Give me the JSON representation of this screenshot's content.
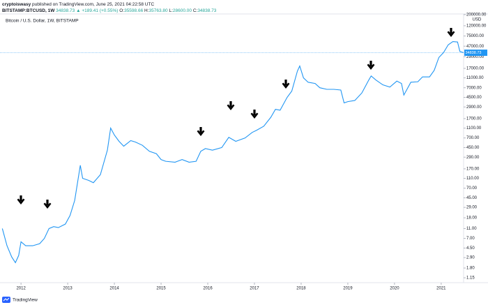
{
  "header": {
    "author": "cryptoiswasy",
    "published": "published on TradingView.com, June 25, 2021 04:22:58 UTC",
    "symbol": "BITSTAMP:BTCUSD, 1W",
    "price": "34838.73",
    "change": "▲ +189.41 (+0.55%)",
    "open_label": "O:",
    "open": "35598.66",
    "high_label": "H:",
    "high": "35763.80",
    "low_label": "L:",
    "low": "28600.00",
    "close_label": "C:",
    "close": "34838.73"
  },
  "chart_data": {
    "type": "line",
    "title": "Bitcoin / U.S. Dollar, 1W, BITSTAMP",
    "y_axis_unit": "USD",
    "color": "#2196f3",
    "log_scale": true,
    "grid": false,
    "x": [
      2011.6,
      2011.7,
      2011.8,
      2011.88,
      2011.95,
      2012.0,
      2012.1,
      2012.25,
      2012.4,
      2012.5,
      2012.6,
      2012.7,
      2012.8,
      2012.95,
      2013.05,
      2013.15,
      2013.27,
      2013.32,
      2013.45,
      2013.55,
      2013.7,
      2013.85,
      2013.92,
      2014.0,
      2014.1,
      2014.2,
      2014.35,
      2014.45,
      2014.6,
      2014.75,
      2014.9,
      2015.0,
      2015.1,
      2015.3,
      2015.45,
      2015.6,
      2015.75,
      2015.85,
      2015.95,
      2016.1,
      2016.3,
      2016.45,
      2016.6,
      2016.8,
      2016.95,
      2017.05,
      2017.2,
      2017.35,
      2017.45,
      2017.55,
      2017.7,
      2017.8,
      2017.92,
      2017.97,
      2018.05,
      2018.15,
      2018.3,
      2018.4,
      2018.55,
      2018.7,
      2018.85,
      2018.92,
      2019.0,
      2019.15,
      2019.3,
      2019.45,
      2019.5,
      2019.6,
      2019.75,
      2019.9,
      2020.05,
      2020.15,
      2020.2,
      2020.35,
      2020.5,
      2020.6,
      2020.75,
      2020.85,
      2020.95,
      2021.05,
      2021.15,
      2021.25,
      2021.35,
      2021.4,
      2021.48
    ],
    "values": [
      11,
      5,
      3,
      2.3,
      3.2,
      6,
      5,
      5,
      5.5,
      7,
      11,
      12,
      11.5,
      13.5,
      20,
      40,
      200,
      110,
      100,
      90,
      130,
      400,
      1100,
      800,
      600,
      480,
      620,
      580,
      500,
      380,
      340,
      260,
      240,
      230,
      260,
      230,
      240,
      380,
      430,
      400,
      450,
      720,
      600,
      700,
      900,
      1000,
      1200,
      1800,
      2600,
      2500,
      4500,
      6000,
      15000,
      19000,
      11000,
      9000,
      8500,
      7000,
      6500,
      6500,
      6300,
      3500,
      3700,
      3900,
      5500,
      10000,
      12000,
      10000,
      8000,
      7200,
      9500,
      8500,
      5000,
      9000,
      9200,
      11500,
      11500,
      15500,
      28000,
      35000,
      50000,
      58000,
      57000,
      37000,
      34838.73
    ],
    "xlim": [
      2011.55,
      2021.48
    ],
    "xticks": [
      2012,
      2013,
      2014,
      2015,
      2016,
      2017,
      2018,
      2019,
      2020,
      2021
    ],
    "ylim": [
      0.92,
      206000
    ],
    "yticks": [
      1.15,
      {
        "value": 1.8,
        "label": "1.80"
      },
      {
        "value": 2.9,
        "label": "2.90"
      },
      {
        "value": 4.5,
        "label": "4.50"
      },
      {
        "value": 7,
        "label": "7.00"
      },
      {
        "value": 11,
        "label": "11.00"
      },
      {
        "value": 18,
        "label": "18.00"
      },
      {
        "value": 29,
        "label": "29.00"
      },
      {
        "value": 45,
        "label": "45.00"
      },
      {
        "value": 70,
        "label": "70.00"
      },
      {
        "value": 110,
        "label": "110.00"
      },
      {
        "value": 170,
        "label": "170.00"
      },
      {
        "value": 290,
        "label": "290.00"
      },
      {
        "value": 450,
        "label": "450.00"
      },
      {
        "value": 700,
        "label": "700.00"
      },
      {
        "value": 1100,
        "label": "1100.00"
      },
      {
        "value": 1700,
        "label": "1700.00"
      },
      {
        "value": 2900,
        "label": "2900.00"
      },
      {
        "value": 4500,
        "label": "4500.00"
      },
      {
        "value": 7000,
        "label": "7000.00"
      },
      {
        "value": 11000,
        "label": "11000.00"
      },
      {
        "value": 17000,
        "label": "17000.00"
      },
      {
        "value": 29000,
        "label": "29000.00"
      },
      {
        "value": 47000,
        "label": "47000.00"
      },
      {
        "value": 75000,
        "label": "75000.00"
      },
      {
        "value": 120000,
        "label": "120000.00"
      },
      {
        "value": 200000,
        "label": "200000.00"
      }
    ]
  },
  "footer": {
    "brand": "TradingView"
  }
}
